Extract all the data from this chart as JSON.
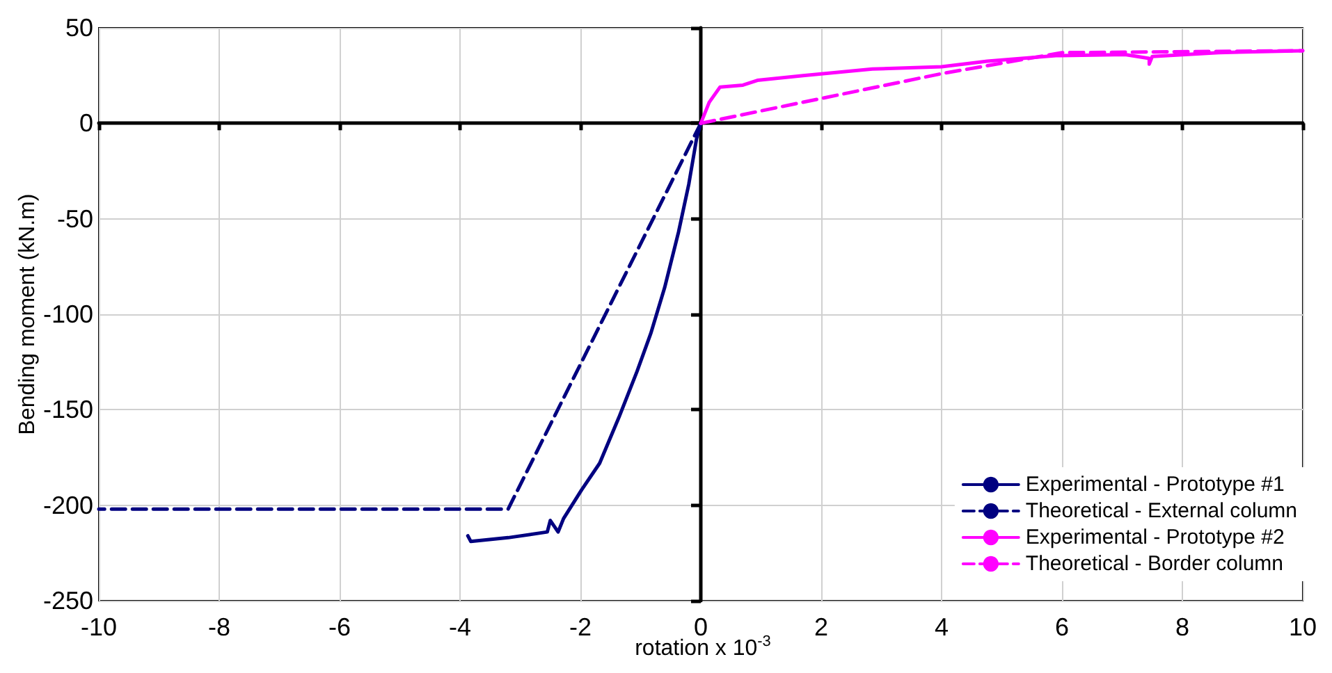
{
  "chart_data": {
    "type": "line",
    "xlabel": "rotation x 10$^{-3}$",
    "ylabel": "Bending moment (kN.m)",
    "xlim": [
      -10,
      10
    ],
    "xticks": [
      -10,
      -8,
      -6,
      -4,
      -2,
      0,
      2,
      4,
      6,
      8,
      10
    ],
    "ylim": [
      -250,
      50
    ],
    "yticks": [
      -250,
      -200,
      -150,
      -100,
      -50,
      0,
      50
    ],
    "grid": true,
    "legend": "lower right",
    "marker": "none",
    "series": [
      {
        "name": "Experimental - Prototype #1",
        "color": "#000080",
        "line_style": "solid",
        "x": [
          0,
          -0.07,
          -0.2,
          -0.37,
          -0.6,
          -0.83,
          -1.06,
          -1.36,
          -1.68,
          -1.98,
          -2.28,
          -2.37,
          -2.5,
          -2.55,
          -3.2,
          -3.82,
          -3.87
        ],
        "values": [
          0,
          -8,
          -32,
          -57,
          -86,
          -110,
          -130,
          -154,
          -178,
          -192,
          -207,
          -214,
          -208,
          -214,
          -217,
          -219,
          -216
        ]
      },
      {
        "name": "Theoretical - External column",
        "color": "#000080",
        "line_style": "dashed",
        "x": [
          0,
          -3.2,
          -10
        ],
        "values": [
          0,
          -202,
          -202
        ]
      },
      {
        "name": "Experimental - Prototype #2",
        "color": "#ff00ff",
        "line_style": "solid",
        "x": [
          0,
          0.14,
          0.32,
          0.7,
          0.94,
          1.7,
          2.85,
          4.0,
          4.76,
          5.9,
          7.05,
          7.45,
          7.45,
          7.5,
          8.6,
          10
        ],
        "values": [
          0,
          11,
          19,
          20,
          22.5,
          25,
          28.4,
          29.6,
          32.5,
          35.4,
          36,
          34,
          31,
          35,
          37,
          38
        ]
      },
      {
        "name": "Theoretical - Border column",
        "color": "#ff00ff",
        "line_style": "dashed",
        "x": [
          0,
          4,
          6,
          10
        ],
        "values": [
          0,
          26,
          37,
          38
        ]
      }
    ]
  }
}
